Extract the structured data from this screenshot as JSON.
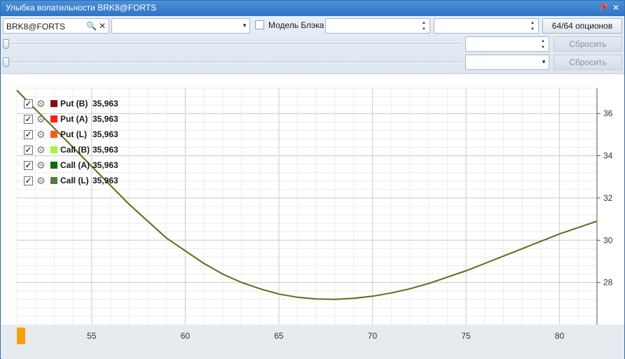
{
  "window": {
    "title": "Улыбка волатильности BRK8@FORTS",
    "pin_glyph": "📌",
    "close_glyph": "✕"
  },
  "toolbar": {
    "security_value": "BRK8@FORTS",
    "series_value": "",
    "black_model_label": "Модель Блэка",
    "black_model_checked": false,
    "spin1_value": "",
    "spin2_value": "",
    "options_button_label": "64/64 опционов",
    "row2_spin_value": "",
    "row2_reset_label": "Сбросить",
    "row3_combo_value": "",
    "row3_reset_label": "Сбросить",
    "slider1_value": 0,
    "slider2_value": 0
  },
  "legend": [
    {
      "label": "Put (B)",
      "value": "35,963",
      "color": "#8b0d0d",
      "checked": true
    },
    {
      "label": "Put (A)",
      "value": "35,963",
      "color": "#ff1a1a",
      "checked": true
    },
    {
      "label": "Put (L)",
      "value": "35,963",
      "color": "#ff5a14",
      "checked": true
    },
    {
      "label": "Call (B)",
      "value": "35,963",
      "color": "#a8f23a",
      "checked": true
    },
    {
      "label": "Call (A)",
      "value": "35,963",
      "color": "#0c6b0c",
      "checked": true
    },
    {
      "label": "Call (L)",
      "value": "35,963",
      "color": "#5a7a3a",
      "checked": true
    }
  ],
  "chart_data": {
    "type": "line",
    "x_ticks": [
      "55",
      "60",
      "65",
      "70",
      "75",
      "80"
    ],
    "y_ticks": [
      "28",
      "30",
      "32",
      "34",
      "36"
    ],
    "xlim": [
      51.0,
      82.0
    ],
    "ylim": [
      26.0,
      37.2
    ],
    "grid": true,
    "legend_position": "top-left",
    "series": [
      {
        "color": "#5c6b1a",
        "x": [
          51.0,
          52,
          53,
          54,
          55,
          56,
          57,
          58,
          59,
          60,
          61,
          62,
          63,
          64,
          65,
          66,
          67,
          68,
          69,
          70,
          71,
          72,
          73,
          74,
          75,
          76,
          77,
          78,
          79,
          80,
          81,
          82
        ],
        "y": [
          37.1,
          36.2,
          35.3,
          34.4,
          33.5,
          32.6,
          31.7,
          30.9,
          30.1,
          29.5,
          28.9,
          28.4,
          28.0,
          27.7,
          27.45,
          27.3,
          27.22,
          27.2,
          27.25,
          27.35,
          27.5,
          27.7,
          27.95,
          28.25,
          28.55,
          28.9,
          29.25,
          29.6,
          29.95,
          30.3,
          30.6,
          30.9
        ]
      }
    ]
  }
}
